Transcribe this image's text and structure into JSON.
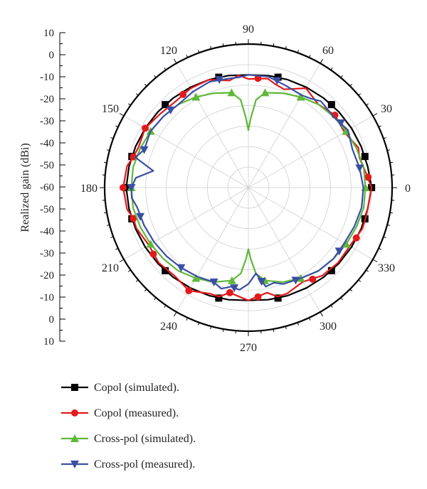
{
  "chart_data": {
    "type": "polar-line",
    "ylabel": "Realized gain (dBi)",
    "radial_ticks": [
      "10",
      "0",
      "-10",
      "-20",
      "-30",
      "-40",
      "-50",
      "-60",
      "-50",
      "-40",
      "-30",
      "-20",
      "-10",
      "0",
      "10"
    ],
    "radial_range": [
      -60,
      10
    ],
    "angle_ticks": [
      "0",
      "30",
      "60",
      "90",
      "120",
      "150",
      "180",
      "210",
      "240",
      "270",
      "300",
      "330"
    ],
    "grid": true,
    "legend_position": "bottom-left",
    "series": [
      {
        "name": "Copol (simulated).",
        "color": "#000000",
        "marker": "square",
        "theta": [
          0,
          10,
          20,
          30,
          40,
          50,
          60,
          70,
          80,
          90,
          100,
          110,
          120,
          130,
          140,
          150,
          160,
          170,
          180,
          190,
          200,
          210,
          220,
          230,
          240,
          250,
          260,
          270,
          280,
          290,
          300,
          310,
          320,
          330,
          340,
          350
        ],
        "r": [
          0,
          -1,
          -1.5,
          -2,
          -2.5,
          -3,
          -3.5,
          -4,
          -4.5,
          -5,
          -4.5,
          -4,
          -3.5,
          -3,
          -2.5,
          -2,
          -1.5,
          -1,
          -0.5,
          -1,
          -1.5,
          -2,
          -2.5,
          -3,
          -3.5,
          -4,
          -4.5,
          -5,
          -4.5,
          -4,
          -3.5,
          -3,
          -2.5,
          -2,
          -1.5,
          -1
        ],
        "marker_theta": [
          0,
          15,
          45,
          75,
          105,
          135,
          165,
          180,
          195,
          225,
          255,
          285,
          315,
          345
        ]
      },
      {
        "name": "Copol (measured).",
        "color": "#e31a1c",
        "marker": "circle",
        "theta": [
          0,
          10,
          15,
          20,
          30,
          40,
          50,
          60,
          70,
          75,
          80,
          90,
          95,
          100,
          110,
          120,
          130,
          140,
          150,
          160,
          165,
          170,
          180,
          190,
          195,
          200,
          210,
          220,
          230,
          240,
          250,
          255,
          260,
          270,
          280,
          285,
          290,
          300,
          310,
          320,
          330,
          340,
          345,
          350
        ],
        "r": [
          0,
          -3,
          -4,
          -3,
          -6,
          -5,
          -7,
          -4,
          -9,
          -8,
          -6,
          -7,
          -5,
          -7,
          -4,
          -4,
          -5,
          -4,
          -2,
          -3,
          -2,
          0,
          1,
          0,
          -2,
          -2,
          -4,
          -3,
          -4,
          -2,
          -5,
          -5,
          -8,
          -5,
          -8,
          -5,
          -5,
          -7,
          -4,
          -3,
          -3,
          -1,
          -1,
          -1
        ],
        "marker_theta": [
          5,
          40,
          85,
          125,
          150,
          165,
          180,
          195,
          215,
          240,
          260,
          275,
          305,
          335
        ]
      },
      {
        "name": "Cross-pol (simulated).",
        "color": "#5fb83a",
        "marker": "triangle-up",
        "theta": [
          0,
          10,
          20,
          30,
          40,
          50,
          60,
          70,
          80,
          85,
          88,
          90,
          92,
          95,
          100,
          110,
          120,
          130,
          140,
          150,
          160,
          170,
          180,
          190,
          200,
          210,
          220,
          230,
          240,
          250,
          260,
          265,
          268,
          270,
          272,
          275,
          280,
          290,
          300,
          310,
          320,
          330,
          340,
          350
        ],
        "r": [
          -3,
          -3,
          -4,
          -5,
          -6,
          -7,
          -9,
          -11,
          -13,
          -17,
          -26,
          -32,
          -26,
          -17,
          -13,
          -11,
          -9,
          -7,
          -6,
          -5,
          -4,
          -3,
          -3,
          -3,
          -4,
          -5,
          -6,
          -7,
          -9,
          -11,
          -14,
          -18,
          -25,
          -30,
          -25,
          -18,
          -14,
          -11,
          -9,
          -7,
          -6,
          -5,
          -4,
          -3
        ],
        "marker_theta": [
          0,
          30,
          60,
          80,
          100,
          120,
          150,
          180,
          210,
          240,
          260,
          280,
          300,
          330
        ]
      },
      {
        "name": "Cross-pol (measured).",
        "color": "#3a4fa3",
        "marker": "triangle-down",
        "theta": [
          0,
          10,
          20,
          30,
          40,
          50,
          55,
          60,
          70,
          80,
          90,
          95,
          100,
          110,
          120,
          130,
          140,
          150,
          160,
          165,
          170,
          175,
          180,
          185,
          190,
          200,
          210,
          220,
          230,
          240,
          250,
          255,
          260,
          265,
          270,
          275,
          280,
          285,
          290,
          300,
          310,
          320,
          330,
          340,
          350
        ],
        "r": [
          -4,
          -5,
          -6,
          -4,
          -6,
          -5,
          -7,
          -8,
          -7,
          -5,
          -5,
          -6,
          -6,
          -5,
          -6,
          -7,
          -6,
          -5,
          -6,
          -3,
          -13,
          -5,
          -3,
          -3,
          -5,
          -6,
          -7,
          -8,
          -9,
          -10,
          -11,
          -9,
          -11,
          -10,
          -13,
          -18,
          -11,
          -12,
          -10,
          -9,
          -7,
          -6,
          -6,
          -5,
          -4
        ],
        "marker_theta": [
          10,
          35,
          75,
          105,
          135,
          160,
          180,
          195,
          230,
          250,
          262,
          278,
          297,
          325
        ]
      }
    ]
  }
}
